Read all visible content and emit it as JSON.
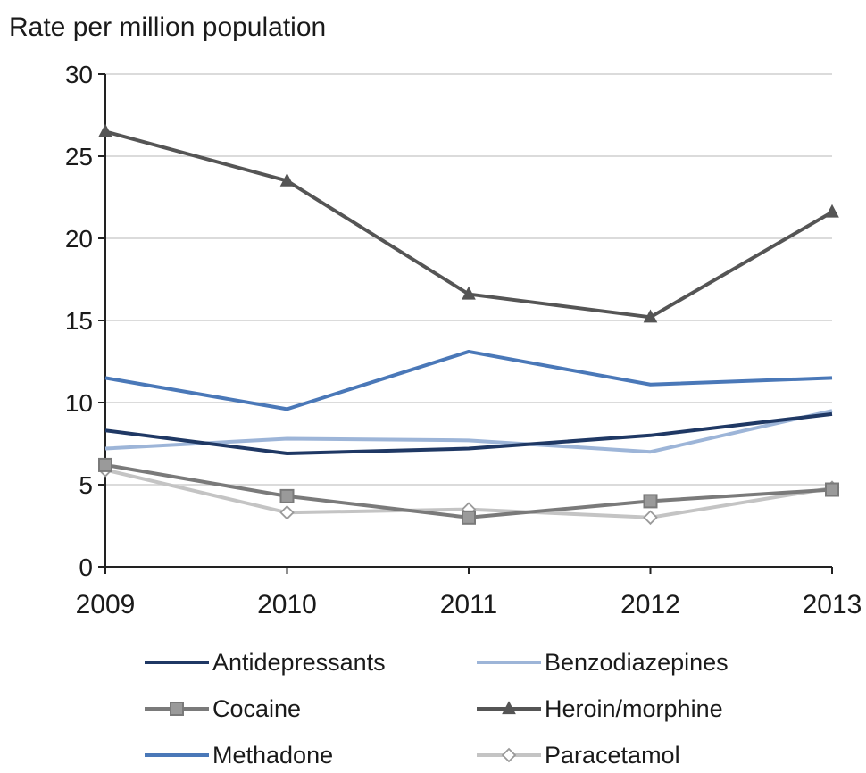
{
  "chart_data": {
    "type": "line",
    "ylabel": "Rate per million population",
    "xlabel": "",
    "title": "",
    "x": [
      "2009",
      "2010",
      "2011",
      "2012",
      "2013"
    ],
    "ylim": [
      0,
      30
    ],
    "yticks": [
      "0",
      "5",
      "10",
      "15",
      "20",
      "25",
      "30"
    ],
    "grid": "horizontal",
    "legend_position": "bottom",
    "series": [
      {
        "name": "Antidepressants",
        "color": "#1f3864",
        "marker": "none",
        "values": [
          8.3,
          6.9,
          7.2,
          8.0,
          9.3
        ]
      },
      {
        "name": "Benzodiazepines",
        "color": "#9db5d8",
        "marker": "none",
        "values": [
          7.2,
          7.8,
          7.7,
          7.0,
          9.5
        ]
      },
      {
        "name": "Cocaine",
        "color": "#7a7a7a",
        "marker": "square",
        "values": [
          6.2,
          4.3,
          3.0,
          4.0,
          4.7
        ]
      },
      {
        "name": "Heroin/morphine",
        "color": "#555555",
        "marker": "triangle",
        "values": [
          26.5,
          23.5,
          16.6,
          15.2,
          21.6
        ]
      },
      {
        "name": "Methadone",
        "color": "#4a78b8",
        "marker": "none",
        "values": [
          11.5,
          9.6,
          13.1,
          11.1,
          11.5
        ]
      },
      {
        "name": "Paracetamol",
        "color": "#c4c4c4",
        "marker": "diamond",
        "values": [
          5.9,
          3.3,
          3.5,
          3.0,
          4.8
        ]
      }
    ]
  }
}
